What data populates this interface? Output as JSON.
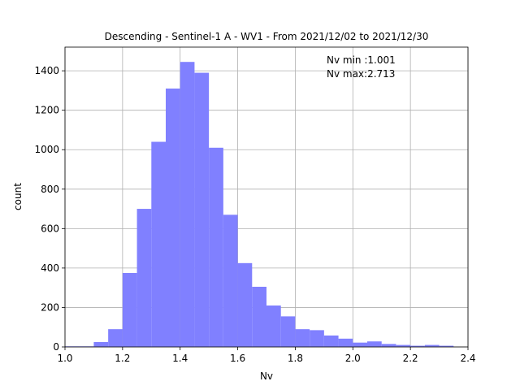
{
  "chart_data": {
    "type": "bar",
    "title": "Descending - Sentinel-1 A - WV1 - From 2021/12/02 to 2021/12/30",
    "xlabel": "Nv",
    "ylabel": "count",
    "xlim": [
      1.0,
      2.4
    ],
    "ylim": [
      0,
      1520
    ],
    "grid": true,
    "color": "#8080ff",
    "bin_width": 0.05,
    "bins_left": [
      1.0,
      1.05,
      1.1,
      1.15,
      1.2,
      1.25,
      1.3,
      1.35,
      1.4,
      1.45,
      1.5,
      1.55,
      1.6,
      1.65,
      1.7,
      1.75,
      1.8,
      1.85,
      1.9,
      1.95,
      2.0,
      2.05,
      2.1,
      2.15,
      2.2,
      2.25,
      2.3
    ],
    "values": [
      3,
      3,
      25,
      90,
      375,
      700,
      1040,
      1310,
      1445,
      1390,
      1010,
      670,
      425,
      305,
      210,
      155,
      90,
      85,
      58,
      42,
      22,
      28,
      15,
      10,
      6,
      10,
      6
    ],
    "xticks": [
      1.0,
      1.2,
      1.4,
      1.6,
      1.8,
      2.0,
      2.2,
      2.4
    ],
    "yticks": [
      0,
      200,
      400,
      600,
      800,
      1000,
      1200,
      1400
    ],
    "annotations": [
      "Nv min :1.001",
      "Nv max:2.713"
    ]
  }
}
